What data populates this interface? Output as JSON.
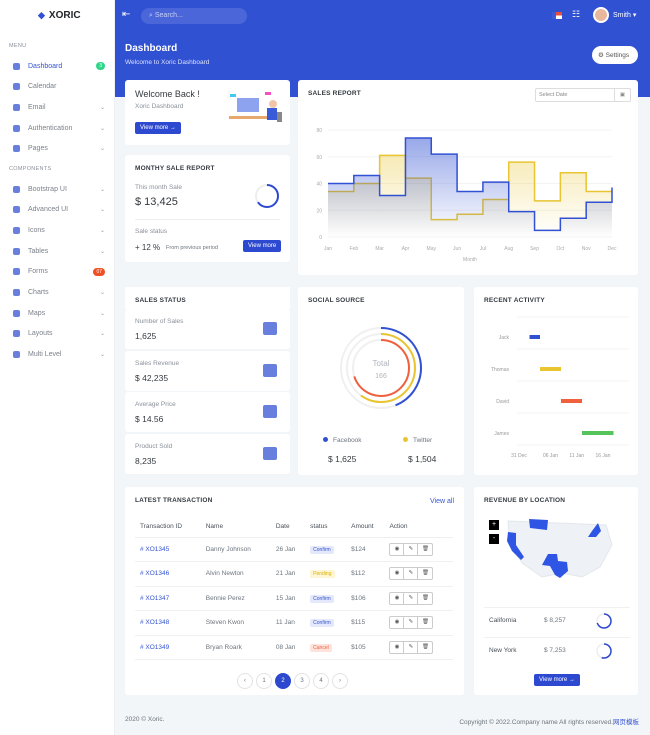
{
  "brand": "XORIC",
  "colors": {
    "primary": "#3151d3",
    "yellow": "#e8c531",
    "red": "#f0603c",
    "green": "#54c45b"
  },
  "sidebar": {
    "menu_title": "MENU",
    "components_title": "COMPONENTS",
    "items": [
      {
        "label": "Dashboard",
        "icon": "monitor-icon",
        "badge": "3",
        "badge_color": "#2fd68a",
        "active": true
      },
      {
        "label": "Calendar",
        "icon": "calendar-icon"
      },
      {
        "label": "Email",
        "icon": "email-icon",
        "chevron": true
      },
      {
        "label": "Authentication",
        "icon": "user-icon",
        "chevron": true
      },
      {
        "label": "Pages",
        "icon": "pages-icon",
        "chevron": true
      }
    ],
    "components": [
      {
        "label": "Bootstrap UI",
        "icon": "cube-icon",
        "chevron": true
      },
      {
        "label": "Advanced UI",
        "icon": "layers-icon",
        "chevron": true
      },
      {
        "label": "Icons",
        "icon": "icons-icon",
        "chevron": true
      },
      {
        "label": "Tables",
        "icon": "table-icon",
        "chevron": true
      },
      {
        "label": "Forms",
        "icon": "form-icon",
        "badge": "07",
        "badge_color": "#f04e23"
      },
      {
        "label": "Charts",
        "icon": "pie-chart-icon",
        "chevron": true
      },
      {
        "label": "Maps",
        "icon": "map-icon",
        "chevron": true
      },
      {
        "label": "Layouts",
        "icon": "layout-icon",
        "chevron": true
      },
      {
        "label": "Multi Level",
        "icon": "multilevel-icon",
        "chevron": true
      }
    ]
  },
  "topbar": {
    "search_placeholder": "Search...",
    "user": "Smith",
    "flag": "us-flag-icon"
  },
  "header": {
    "title": "Dashboard",
    "subtitle": "Welcome to Xoric Dashboard",
    "settings": "Settings"
  },
  "welcome": {
    "title": "Welcome Back !",
    "subtitle": "Xoric Dashboard",
    "button": "View more"
  },
  "monthly": {
    "title": "MONTHY SALE REPORT",
    "label": "This month Sale",
    "value": "$ 13,425",
    "gauge": 0.65,
    "status_label": "Sale status",
    "pct": "+ 12 %",
    "pct_note": "From previous period",
    "button": "View more"
  },
  "sales_report": {
    "title": "SALES REPORT",
    "date_placeholder": "Select Date"
  },
  "chart_data": [
    {
      "type": "line",
      "step": true,
      "xlabel": "Month",
      "ylim": [
        0,
        80
      ],
      "yticks": [
        0,
        20,
        40,
        60,
        80
      ],
      "categories": [
        "Jan",
        "Feb",
        "Mar",
        "Apr",
        "May",
        "Jun",
        "Jul",
        "Aug",
        "Sep",
        "Oct",
        "Nov",
        "Dec"
      ],
      "series": [
        {
          "color": "#3151d3",
          "values": [
            40,
            46,
            31,
            74,
            62,
            34,
            41,
            19,
            5,
            14,
            26,
            37
          ]
        },
        {
          "color": "#e8c531",
          "values": [
            34,
            40,
            61,
            44,
            13,
            17,
            28,
            56,
            27,
            48,
            34,
            34
          ]
        }
      ]
    },
    {
      "type": "bar",
      "orientation": "horizontal-timeline",
      "title": "RECENT ACTIVITY",
      "categories": [
        "Jack",
        "Thomas",
        "David",
        "James"
      ],
      "xticks": [
        "31 Dec",
        "06 Jan",
        "11 Jan",
        "16 Jan"
      ],
      "tasks": [
        {
          "name": "Jack",
          "start": "2 Jan",
          "end": "4 Jan",
          "color": "#3151d3"
        },
        {
          "name": "Thomas",
          "start": "4 Jan",
          "end": "8 Jan",
          "color": "#e8c531"
        },
        {
          "name": "David",
          "start": "8 Jan",
          "end": "12 Jan",
          "color": "#f0603c"
        },
        {
          "name": "James",
          "start": "12 Jan",
          "end": "18 Jan",
          "color": "#54c45b"
        }
      ]
    }
  ],
  "sales_status": {
    "title": "SALES STATUS",
    "items": [
      {
        "label": "Number of Sales",
        "value": "1,625",
        "icon": "layers-icon"
      },
      {
        "label": "Sales Revenue",
        "value": "$ 42,235",
        "icon": "bar-chart-icon"
      },
      {
        "label": "Average Price",
        "value": "$ 14.56",
        "icon": "ticket-icon"
      },
      {
        "label": "Product Sold",
        "value": "8,235",
        "icon": "box-icon"
      }
    ]
  },
  "social": {
    "title": "SOCIAL SOURCE",
    "total_label": "Total",
    "total": "166",
    "rings": [
      {
        "color": "#3151d3",
        "fill": 0.44
      },
      {
        "color": "#e8c531",
        "fill": 0.6
      },
      {
        "color": "#f0603c",
        "fill": 0.7
      }
    ],
    "legend": [
      {
        "name": "Facebook",
        "value": "$ 1,625",
        "color": "#3151d3"
      },
      {
        "name": "Twitter",
        "value": "$ 1,504",
        "color": "#e8c531"
      }
    ]
  },
  "transactions": {
    "title": "LATEST TRANSACTION",
    "view_all": "View all",
    "columns": [
      "Transaction ID",
      "Name",
      "Date",
      "status",
      "Amount",
      "Action"
    ],
    "rows": [
      [
        "# XO1345",
        "Danny Johnson",
        "26 Jan",
        "Confirm",
        "$124"
      ],
      [
        "# XO1346",
        "Alvin Newton",
        "21 Jan",
        "Pending",
        "$112"
      ],
      [
        "# XO1347",
        "Bennie Perez",
        "15 Jan",
        "Confirm",
        "$106"
      ],
      [
        "# XO1348",
        "Steven Kwon",
        "11 Jan",
        "Confirm",
        "$115"
      ],
      [
        "# XO1349",
        "Bryan Roark",
        "08 Jan",
        "Cancel",
        "$105"
      ]
    ],
    "pages": [
      "‹",
      "1",
      "2",
      "3",
      "4",
      "›"
    ],
    "current_page": "2"
  },
  "revenue": {
    "title": "REVENUE BY LOCATION",
    "zoom_in": "+",
    "zoom_out": "-",
    "rows": [
      {
        "state": "California",
        "value": "$ 8,257",
        "fill": 0.7
      },
      {
        "state": "New York",
        "value": "$ 7,253",
        "fill": 0.55
      }
    ],
    "button": "View more"
  },
  "footer": {
    "left": "2020 © Xoric.",
    "right": "Copyright © 2022.Company name All rights reserved.",
    "link": "网页模板"
  }
}
